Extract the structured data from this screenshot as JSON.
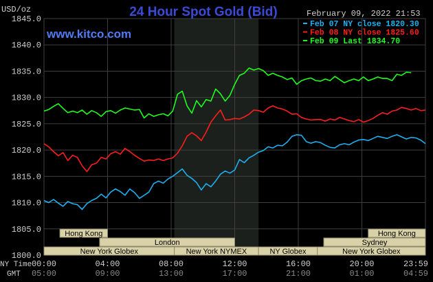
{
  "header": {
    "unit": "USD/oz",
    "title": "24 Hour Spot Gold (Bid)",
    "brand": "www.kitco.com",
    "timestamp": "February 09, 2022 21:53"
  },
  "colors": {
    "background": "#000000",
    "plot_background": "#000000",
    "grid": "#3f3f3f",
    "ny_session_shade": "#1c201c",
    "title": "#3b4bd6",
    "brand": "#4f7cf5",
    "text": "#cfcfcf",
    "session_fill": "#d9d2a8",
    "session_border": "#8f8a6e",
    "session_text": "#000000"
  },
  "chart_data": {
    "type": "line",
    "title": "24 Hour Spot Gold (Bid)",
    "ylabel": "USD/oz",
    "ylim": [
      1800,
      1845
    ],
    "yticks": [
      "1845.0",
      "1840.0",
      "1835.0",
      "1830.0",
      "1825.0",
      "1820.0",
      "1815.0",
      "1810.0",
      "1805.0",
      "1800.0"
    ],
    "ytick_values": [
      1845,
      1840,
      1835,
      1830,
      1825,
      1820,
      1815,
      1810,
      1805,
      1800
    ],
    "xlim_hours": [
      0,
      24
    ],
    "x_axis_ny_label": "NY Time",
    "x_axis_gmt_label": "GMT",
    "xticks_ny": [
      "00:00",
      "04:00",
      "08:00",
      "12:00",
      "16:00",
      "20:00",
      "23:59"
    ],
    "xticks_gmt": [
      "05:00",
      "09:00",
      "13:00",
      "17:00",
      "21:00",
      "01:00",
      "04:59"
    ],
    "xtick_hours": [
      0,
      4,
      8,
      12,
      16,
      20,
      24
    ],
    "grid": true,
    "legend_position": "top-right",
    "legend": [
      {
        "label": "Feb 07 NY close 1820.30",
        "color": "#1eb0f0"
      },
      {
        "label": "Feb 08 NY close 1825.60",
        "color": "#ff1e1e"
      },
      {
        "label": "Feb 09 Last 1834.70",
        "color": "#1eff1e"
      }
    ],
    "shaded_range_hours": [
      8.2,
      13.5
    ],
    "sessions": [
      {
        "name": "Hong Kong",
        "start": 1,
        "end": 4,
        "row": 0
      },
      {
        "name": "Hong Kong",
        "start": 20.4,
        "end": 24,
        "row": 0
      },
      {
        "name": "London",
        "start": 3.5,
        "end": 12,
        "row": 1
      },
      {
        "name": "Sydney",
        "start": 17.6,
        "end": 24,
        "row": 1
      },
      {
        "name": "New York Globex",
        "start": 0,
        "end": 8.2,
        "row": 2
      },
      {
        "name": "New York NYMEX",
        "start": 8.2,
        "end": 13.5,
        "row": 2
      },
      {
        "name": "NY Globex",
        "start": 13.5,
        "end": 17.2,
        "row": 2
      },
      {
        "name": "New York Globex",
        "start": 17.2,
        "end": 24,
        "row": 2
      }
    ],
    "series": [
      {
        "name": "Feb 07 NY close 1820.30",
        "color": "#1eb0f0",
        "x": [
          0,
          0.3,
          0.6,
          0.9,
          1.2,
          1.5,
          1.8,
          2.1,
          2.4,
          2.7,
          3.0,
          3.3,
          3.6,
          3.9,
          4.2,
          4.5,
          4.8,
          5.1,
          5.4,
          5.7,
          6.0,
          6.3,
          6.6,
          6.9,
          7.2,
          7.5,
          7.8,
          8.1,
          8.4,
          8.7,
          9.0,
          9.3,
          9.6,
          9.9,
          10.2,
          10.5,
          10.8,
          11.1,
          11.4,
          11.7,
          12.0,
          12.3,
          12.6,
          12.9,
          13.2,
          13.5,
          13.8,
          14.1,
          14.4,
          14.7,
          15.0,
          15.3,
          15.6,
          15.9,
          16.2,
          16.5,
          16.8,
          17.1,
          17.4,
          17.7,
          18.0,
          18.3,
          18.6,
          18.9,
          19.2,
          19.5,
          19.8,
          20.1,
          20.4,
          20.7,
          21.0,
          21.3,
          21.6,
          21.9,
          22.2,
          22.5,
          22.8,
          23.1,
          23.4,
          23.7,
          24.0
        ],
        "values": [
          1810.4,
          1810.0,
          1810.6,
          1809.9,
          1809.3,
          1810.2,
          1809.8,
          1809.6,
          1808.7,
          1809.8,
          1810.4,
          1810.8,
          1811.6,
          1810.9,
          1812.0,
          1812.6,
          1812.1,
          1811.4,
          1812.6,
          1811.9,
          1810.8,
          1811.4,
          1812.0,
          1813.6,
          1814.1,
          1813.7,
          1814.5,
          1815.0,
          1815.7,
          1816.4,
          1815.2,
          1814.6,
          1813.8,
          1812.4,
          1813.6,
          1813.0,
          1814.1,
          1815.4,
          1816.0,
          1815.6,
          1816.2,
          1818.2,
          1817.6,
          1818.5,
          1819.0,
          1819.6,
          1819.9,
          1820.6,
          1820.4,
          1820.9,
          1820.8,
          1821.5,
          1822.6,
          1822.9,
          1822.8,
          1821.6,
          1821.3,
          1821.6,
          1821.4,
          1820.9,
          1820.5,
          1820.4,
          1821.0,
          1821.2,
          1821.0,
          1821.5,
          1821.9,
          1822.0,
          1821.8,
          1822.2,
          1822.6,
          1822.4,
          1822.2,
          1822.6,
          1822.9,
          1822.5,
          1822.1,
          1822.4,
          1822.3,
          1821.9,
          1821.2
        ]
      },
      {
        "name": "Feb 08 NY close 1825.60",
        "color": "#ff1e1e",
        "x": [
          0,
          0.3,
          0.6,
          0.9,
          1.2,
          1.5,
          1.8,
          2.1,
          2.4,
          2.7,
          3.0,
          3.3,
          3.6,
          3.9,
          4.2,
          4.5,
          4.8,
          5.1,
          5.4,
          5.7,
          6.0,
          6.3,
          6.6,
          6.9,
          7.2,
          7.5,
          7.8,
          8.1,
          8.4,
          8.7,
          9.0,
          9.3,
          9.6,
          9.9,
          10.2,
          10.5,
          10.8,
          11.1,
          11.4,
          11.7,
          12.0,
          12.3,
          12.6,
          12.9,
          13.2,
          13.5,
          13.8,
          14.1,
          14.4,
          14.7,
          15.0,
          15.3,
          15.6,
          15.9,
          16.2,
          16.5,
          16.8,
          17.1,
          17.4,
          17.7,
          18.0,
          18.3,
          18.6,
          18.9,
          19.2,
          19.5,
          19.8,
          20.1,
          20.4,
          20.7,
          21.0,
          21.3,
          21.6,
          21.9,
          22.2,
          22.5,
          22.8,
          23.1,
          23.4,
          23.7,
          24.0
        ],
        "values": [
          1821.2,
          1820.6,
          1819.7,
          1818.9,
          1819.5,
          1818.0,
          1819.0,
          1818.6,
          1817.0,
          1815.9,
          1817.2,
          1817.5,
          1818.6,
          1818.3,
          1819.3,
          1819.7,
          1819.2,
          1820.3,
          1819.7,
          1819.0,
          1818.4,
          1817.9,
          1818.1,
          1818.0,
          1818.3,
          1818.0,
          1818.3,
          1818.5,
          1819.4,
          1820.8,
          1822.6,
          1823.3,
          1822.7,
          1821.8,
          1823.4,
          1825.3,
          1826.5,
          1827.6,
          1825.7,
          1825.8,
          1826.0,
          1825.9,
          1826.3,
          1826.8,
          1827.6,
          1827.5,
          1827.2,
          1828.0,
          1828.4,
          1828.0,
          1827.8,
          1827.4,
          1826.8,
          1826.9,
          1826.2,
          1825.9,
          1825.7,
          1825.8,
          1825.8,
          1825.5,
          1825.9,
          1825.7,
          1826.2,
          1825.9,
          1825.6,
          1825.4,
          1825.8,
          1825.3,
          1825.6,
          1826.0,
          1826.6,
          1827.1,
          1826.8,
          1827.4,
          1827.6,
          1828.1,
          1827.9,
          1827.6,
          1827.9,
          1827.5,
          1827.6
        ]
      },
      {
        "name": "Feb 09 Last 1834.70",
        "color": "#1eff1e",
        "x": [
          0,
          0.3,
          0.6,
          0.9,
          1.2,
          1.5,
          1.8,
          2.1,
          2.4,
          2.7,
          3.0,
          3.3,
          3.6,
          3.9,
          4.2,
          4.5,
          4.8,
          5.1,
          5.4,
          5.7,
          6.0,
          6.3,
          6.6,
          6.9,
          7.2,
          7.5,
          7.8,
          8.1,
          8.4,
          8.7,
          9.0,
          9.3,
          9.6,
          9.9,
          10.2,
          10.5,
          10.8,
          11.1,
          11.4,
          11.7,
          12.0,
          12.3,
          12.6,
          12.9,
          13.2,
          13.5,
          13.8,
          14.1,
          14.4,
          14.7,
          15.0,
          15.3,
          15.6,
          15.9,
          16.2,
          16.5,
          16.8,
          17.1,
          17.4,
          17.7,
          18.0,
          18.3,
          18.6,
          18.9,
          19.2,
          19.5,
          19.8,
          20.1,
          20.4,
          20.7,
          21.0,
          21.3,
          21.6,
          21.9,
          22.2,
          22.5,
          22.8,
          23.1
        ],
        "values": [
          1827.4,
          1827.7,
          1828.3,
          1828.8,
          1827.9,
          1827.1,
          1827.4,
          1827.1,
          1827.6,
          1826.8,
          1827.5,
          1827.1,
          1826.4,
          1827.3,
          1827.5,
          1827.0,
          1827.6,
          1828.0,
          1827.8,
          1827.6,
          1827.7,
          1826.1,
          1826.9,
          1826.4,
          1826.7,
          1826.9,
          1826.5,
          1827.4,
          1830.6,
          1831.2,
          1828.4,
          1827.0,
          1829.4,
          1828.2,
          1829.6,
          1829.3,
          1831.6,
          1830.7,
          1829.3,
          1830.4,
          1832.5,
          1834.2,
          1834.6,
          1835.6,
          1835.2,
          1835.5,
          1835.1,
          1834.2,
          1834.6,
          1834.2,
          1833.9,
          1833.4,
          1833.7,
          1832.5,
          1833.2,
          1833.5,
          1833.7,
          1833.2,
          1833.1,
          1833.5,
          1833.2,
          1834.0,
          1833.4,
          1832.8,
          1833.2,
          1833.5,
          1833.2,
          1833.9,
          1833.2,
          1833.5,
          1833.9,
          1833.6,
          1833.6,
          1833.2,
          1834.4,
          1834.2,
          1834.8,
          1834.7
        ]
      }
    ]
  }
}
